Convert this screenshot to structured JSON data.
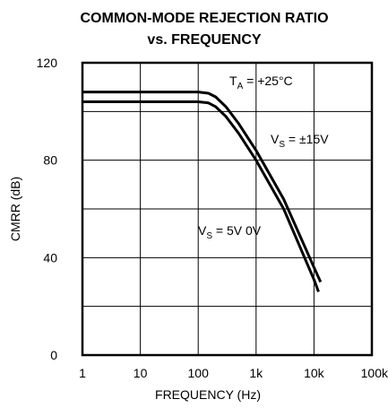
{
  "chart_data": {
    "type": "line",
    "title": "COMMON-MODE REJECTION RATIO",
    "subtitle": "vs. FREQUENCY",
    "xlabel": "FREQUENCY (Hz)",
    "ylabel": "CMRR (dB)",
    "x_scale": "log",
    "xlim": [
      1,
      100000
    ],
    "ylim": [
      0,
      120
    ],
    "grid": true,
    "x_ticks": [
      {
        "value": 1,
        "label": "1"
      },
      {
        "value": 10,
        "label": "10"
      },
      {
        "value": 100,
        "label": "100"
      },
      {
        "value": 1000,
        "label": "1k"
      },
      {
        "value": 10000,
        "label": "10k"
      },
      {
        "value": 100000,
        "label": "100k"
      }
    ],
    "y_ticks": [
      {
        "value": 0,
        "label": "0"
      },
      {
        "value": 40,
        "label": "40"
      },
      {
        "value": 80,
        "label": "80"
      },
      {
        "value": 120,
        "label": "120"
      }
    ],
    "y_grid_values": [
      0,
      20,
      40,
      60,
      80,
      100,
      120
    ],
    "series": [
      {
        "x": [
          1,
          10,
          100,
          150,
          200,
          300,
          500,
          1000,
          3000,
          10000,
          13000
        ],
        "y": [
          108,
          108,
          108,
          107.5,
          106,
          102,
          95,
          84,
          64,
          36,
          30
        ]
      },
      {
        "x": [
          1,
          10,
          100,
          150,
          200,
          300,
          500,
          1000,
          3000,
          10000,
          12000
        ],
        "y": [
          104,
          104,
          104,
          103.5,
          102,
          98,
          91,
          80,
          60,
          31,
          26
        ]
      }
    ],
    "annotations": {
      "ta": {
        "main": "T",
        "sub": "A",
        "rest": " = +25°C"
      },
      "vs15": {
        "main": "V",
        "sub": "S",
        "rest": " = ±15V"
      },
      "vs5": {
        "main": "V",
        "sub": "S",
        "rest": " = 5V 0V"
      }
    }
  }
}
